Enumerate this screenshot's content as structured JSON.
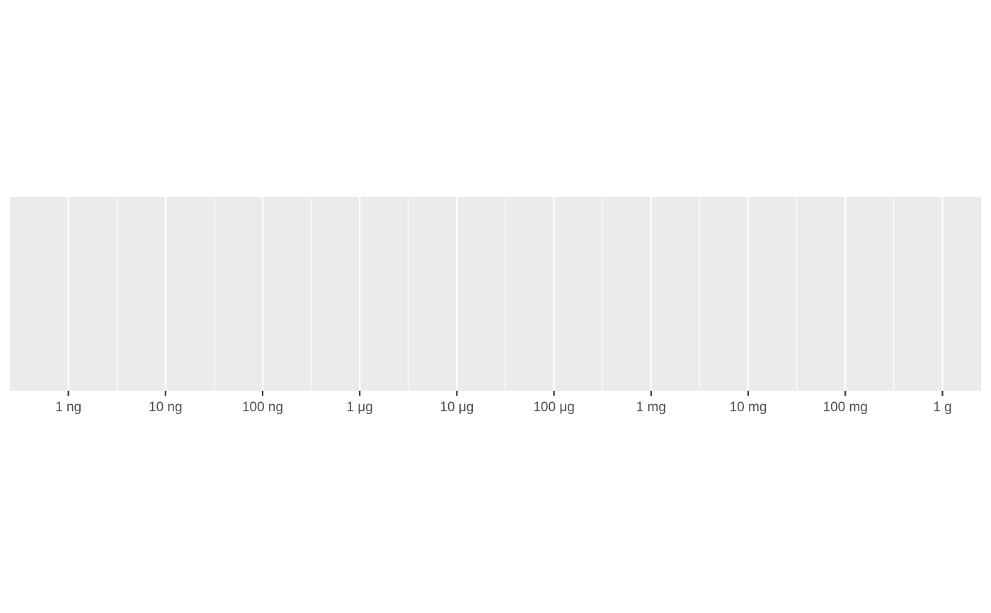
{
  "chart_data": {
    "type": "scatter",
    "title": "",
    "xlabel": "",
    "ylabel": "",
    "x_scale": "log10",
    "x_unit": "g",
    "xlim": [
      2.5e-10,
      2.5
    ],
    "x_ticks": [
      {
        "value": 1e-09,
        "label": "1 ng"
      },
      {
        "value": 1e-08,
        "label": "10 ng"
      },
      {
        "value": 1e-07,
        "label": "100 ng"
      },
      {
        "value": 1e-06,
        "label": "1 μg"
      },
      {
        "value": 1e-05,
        "label": "10 μg"
      },
      {
        "value": 0.0001,
        "label": "100 μg"
      },
      {
        "value": 0.001,
        "label": "1 mg"
      },
      {
        "value": 0.01,
        "label": "10 mg"
      },
      {
        "value": 0.1,
        "label": "100 mg"
      },
      {
        "value": 1,
        "label": "1 g"
      }
    ],
    "grid": true,
    "series": [],
    "colors": {
      "panel": "#ebebeb",
      "gridline": "#ffffff",
      "tick": "#333333",
      "tick_label": "#4d4d4d"
    }
  }
}
